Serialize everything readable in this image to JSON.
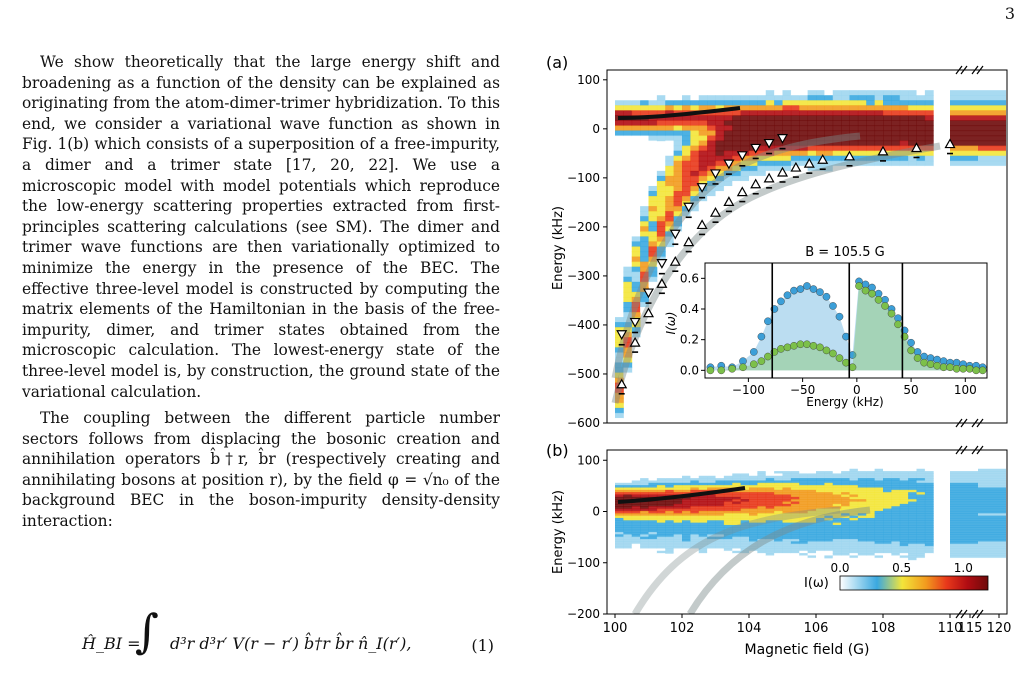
{
  "page_number": "3",
  "paragraphs": [
    "We show theoretically that the large energy shift and broadening as a function of the density can be explained as originating from the atom-dimer-trimer hybridization. To this end, we consider a variational wave function as shown in Fig. 1(b) which consists of a superposition of a free-impurity, a dimer and a trimer state [17, 20, 22]. We use a microscopic model with model potentials which reproduce the low-energy scattering properties extracted from first-principles scattering calculations (see SM). The dimer and trimer wave functions are then variationally optimized to minimize the energy in the presence of the BEC. The effective three-level model is constructed by computing the matrix elements of the Hamiltonian in the basis of the free-impurity, dimer, and trimer states obtained from the microscopic calculation. The lowest-energy state of the three-level model is, by construction, the ground state of the variational calculation.",
    "The coupling between the different particle number sectors follows from displacing the bosonic creation and annihilation operators b̂†r, b̂r (respectively creating and annihilating bosons at position r), by the field φ = √n₀ of the background BEC in the boson-impurity density-density interaction:"
  ],
  "equation": {
    "lhs": "Ĥ_BI = ",
    "integral": "∫",
    "rhs": "d³r d³r′ V(r − r′) b̂†r b̂r n̂_I(r′),",
    "number": "(1)"
  },
  "figure": {
    "panel_a_label": "(a)",
    "panel_b_label": "(b)",
    "ylabel": "Energy (kHz)",
    "xlabel": "Magnetic field (G)",
    "inset_title": "B = 105.5 G",
    "inset_ylabel": "I(ω)",
    "inset_xlabel": "Energy (kHz)",
    "colorbar_label": "I(ω)",
    "colorbar_colors": [
      "#ffffff",
      "#9fd6f0",
      "#3aa8e0",
      "#f3e53a",
      "#f29b1e",
      "#e8381b",
      "#b10c12",
      "#6e0a0a"
    ]
  },
  "chart_data": [
    {
      "type": "heatmap",
      "panel": "(a)",
      "xlabel": "",
      "ylabel": "Energy (kHz)",
      "ylim": [
        -600,
        120
      ],
      "y_ticks": [
        "100",
        "0",
        "−100",
        "−200",
        "−300",
        "−400",
        "−500",
        "−600"
      ],
      "x_ticks": [],
      "broken_axis_marks": true,
      "series": [
        {
          "marker": "down-triangle",
          "x": [
            100.2,
            100.6,
            101.0,
            101.4,
            101.8,
            102.2,
            102.6,
            103.0,
            103.4,
            103.8,
            104.2,
            104.6,
            105.0
          ],
          "y": [
            -420,
            -395,
            -335,
            -275,
            -215,
            -160,
            -120,
            -92,
            -72,
            -55,
            -40,
            -30,
            -20
          ]
        },
        {
          "marker": "up-triangle",
          "x": [
            100.2,
            100.6,
            101.0,
            101.4,
            101.8,
            102.2,
            102.6,
            103.0,
            103.4,
            103.8,
            104.2,
            104.6,
            105.0,
            105.4,
            105.8,
            106.2,
            107.0,
            108.0,
            109.0,
            110.0
          ],
          "y": [
            -520,
            -435,
            -375,
            -315,
            -270,
            -230,
            -195,
            -170,
            -148,
            -128,
            -112,
            -100,
            -88,
            -78,
            -70,
            -62,
            -55,
            -45,
            -38,
            -30
          ]
        }
      ]
    },
    {
      "type": "scatter",
      "panel": "(a) inset",
      "title": "B = 105.5 G",
      "xlabel": "Energy (kHz)",
      "ylabel": "I(ω)",
      "xlim": [
        -140,
        120
      ],
      "ylim": [
        -0.05,
        0.7
      ],
      "x_ticks": [
        "−100",
        "−50",
        "0",
        "50",
        "100"
      ],
      "y_ticks": [
        "0.0",
        "0.2",
        "0.4",
        "0.6"
      ],
      "vertical_lines_x": [
        -78,
        -7,
        42
      ],
      "series": [
        {
          "color": "#3c9fd8",
          "x": [
            -135,
            -125,
            -115,
            -105,
            -95,
            -88,
            -82,
            -76,
            -70,
            -64,
            -58,
            -52,
            -46,
            -40,
            -34,
            -28,
            -22,
            -16,
            -10,
            -4,
            2,
            8,
            14,
            20,
            26,
            32,
            38,
            44,
            50,
            56,
            62,
            68,
            74,
            80,
            86,
            92,
            98,
            104,
            110,
            116
          ],
          "y": [
            0.02,
            0.03,
            0.02,
            0.06,
            0.12,
            0.22,
            0.32,
            0.4,
            0.45,
            0.49,
            0.52,
            0.53,
            0.55,
            0.53,
            0.51,
            0.48,
            0.42,
            0.35,
            0.22,
            0.1,
            0.58,
            0.56,
            0.54,
            0.5,
            0.46,
            0.4,
            0.34,
            0.26,
            0.18,
            0.12,
            0.09,
            0.08,
            0.07,
            0.06,
            0.05,
            0.05,
            0.04,
            0.03,
            0.03,
            0.02
          ]
        },
        {
          "color": "#7cc04a",
          "x": [
            -135,
            -125,
            -115,
            -105,
            -95,
            -88,
            -82,
            -76,
            -70,
            -64,
            -58,
            -52,
            -46,
            -40,
            -34,
            -28,
            -22,
            -16,
            -10,
            -4,
            2,
            8,
            14,
            20,
            26,
            32,
            38,
            44,
            50,
            56,
            62,
            68,
            74,
            80,
            86,
            92,
            98,
            104,
            110,
            116
          ],
          "y": [
            0.0,
            0.0,
            0.01,
            0.02,
            0.04,
            0.06,
            0.09,
            0.12,
            0.14,
            0.15,
            0.16,
            0.17,
            0.17,
            0.16,
            0.15,
            0.13,
            0.11,
            0.08,
            0.05,
            0.02,
            0.55,
            0.52,
            0.5,
            0.46,
            0.42,
            0.37,
            0.3,
            0.22,
            0.13,
            0.08,
            0.05,
            0.04,
            0.03,
            0.02,
            0.02,
            0.01,
            0.01,
            0.01,
            0.0,
            0.0
          ]
        }
      ]
    },
    {
      "type": "heatmap",
      "panel": "(b)",
      "xlabel": "Magnetic field (G)",
      "ylabel": "Energy (kHz)",
      "ylim": [
        -200,
        120
      ],
      "y_ticks": [
        "100",
        "0",
        "−100",
        "−200"
      ],
      "x_ticks": [
        "100",
        "102",
        "104",
        "106",
        "108",
        "110",
        "115",
        "120"
      ],
      "colorbar": {
        "min": 0.0,
        "max": 1.2,
        "ticks": [
          "0.0",
          "0.5",
          "1.0"
        ]
      }
    }
  ]
}
